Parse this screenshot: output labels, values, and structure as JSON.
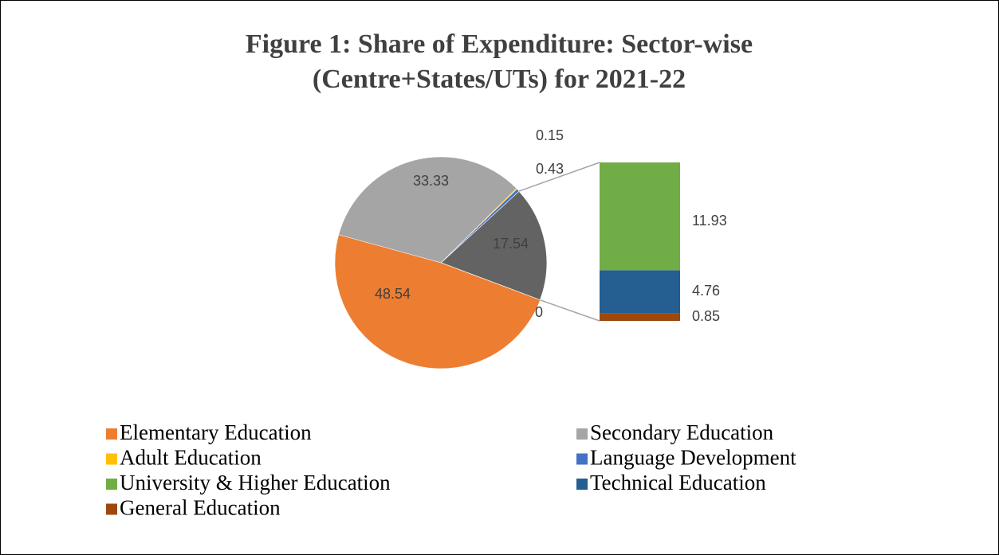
{
  "chart_data": {
    "type": "bar-of-pie",
    "title": [
      "Figure 1: Share of Expenditure: Sector-wise",
      "(Centre+States/UTs) for 2021-22"
    ],
    "categories": [
      "Elementary Education",
      "Secondary Education",
      "Adult Education",
      "Language Development",
      "University & Higher Education",
      "Technical Education",
      "General Education"
    ],
    "values": [
      48.54,
      33.33,
      0.15,
      0.43,
      11.93,
      4.76,
      0.85
    ],
    "colors": [
      "#ed7d31",
      "#a5a5a5",
      "#ffc000",
      "#4472c4",
      "#70ad47",
      "#255e91",
      "#9e480e"
    ],
    "other_value": 17.54,
    "other_color": "#636363",
    "split_count": 3,
    "annotations": [
      "0"
    ]
  }
}
